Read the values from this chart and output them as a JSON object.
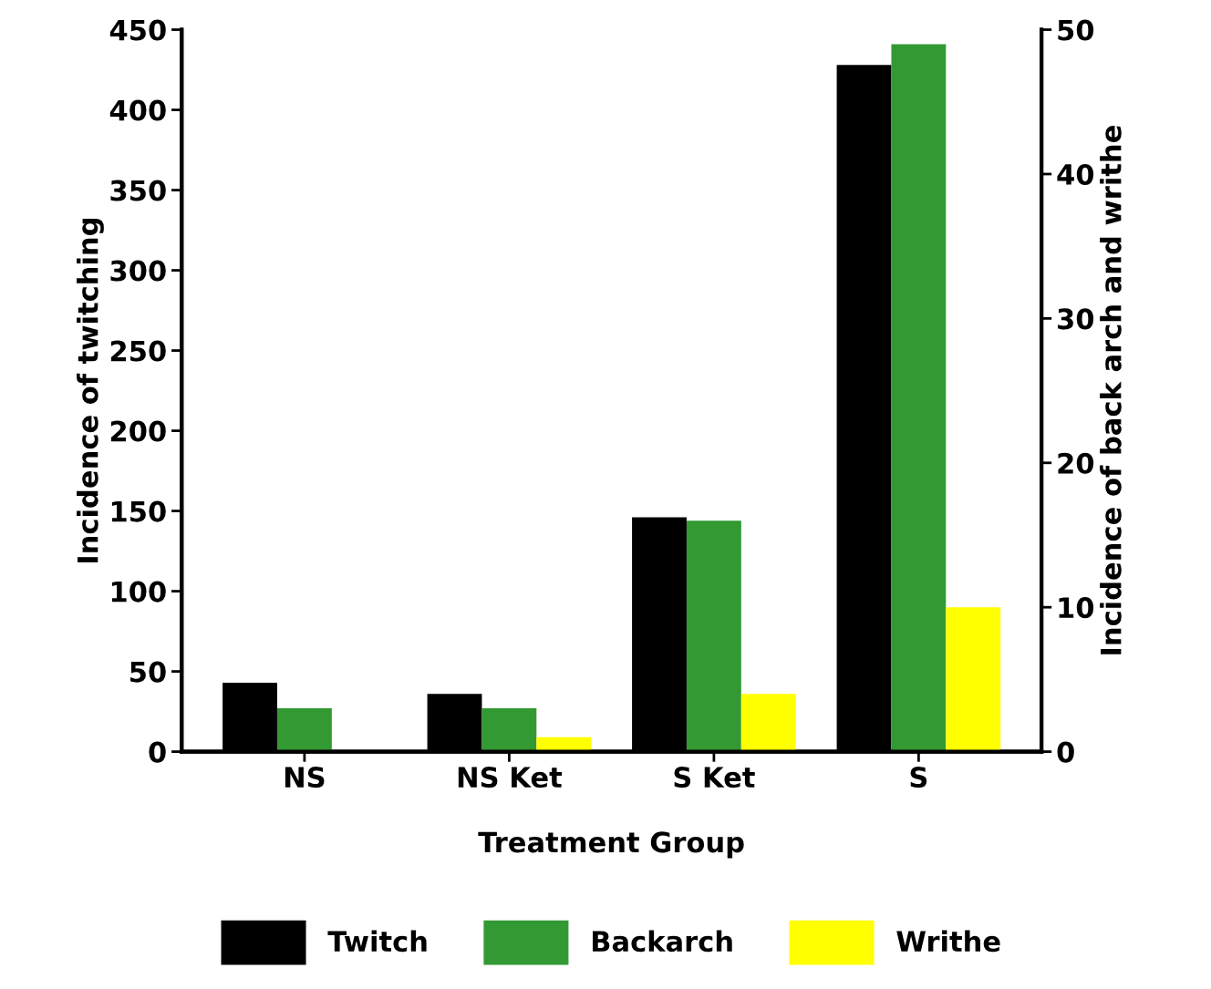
{
  "chart_data": {
    "type": "bar",
    "xlabel": "Treatment Group",
    "ylabel": "Incidence of twitching",
    "y2label": "Incidence of back arch and writhe",
    "categories": [
      "NS",
      "NS Ket",
      "S Ket",
      "S"
    ],
    "series": [
      {
        "name": "Twitch",
        "color": "#000000",
        "values": [
          43,
          36,
          146,
          428
        ]
      },
      {
        "name": "Backarch",
        "color": "#339933",
        "values": [
          3,
          3,
          16,
          49
        ],
        "axis": "y2"
      },
      {
        "name": "Writhe",
        "color": "#ffff00",
        "values": [
          0,
          1,
          4,
          10
        ],
        "axis": "y2"
      }
    ],
    "ylim": [
      0,
      450
    ],
    "yticks": [
      0,
      50,
      100,
      150,
      200,
      250,
      300,
      350,
      400,
      450
    ],
    "y2lim": [
      0,
      50
    ],
    "y2ticks": [
      0,
      10,
      20,
      30,
      40,
      50
    ],
    "legend": "bottom",
    "grid": false
  }
}
